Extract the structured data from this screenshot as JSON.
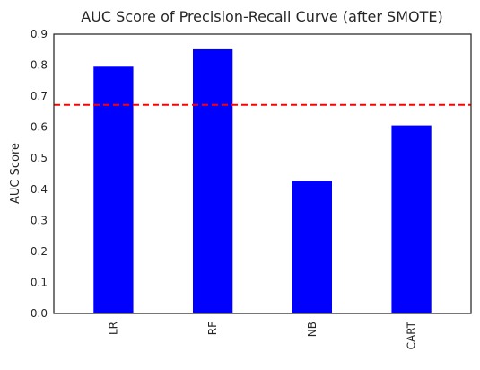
{
  "chart_data": {
    "type": "bar",
    "title": "AUC Score of Precision-Recall Curve (after SMOTE)",
    "xlabel": "",
    "ylabel": "AUC Score",
    "categories": [
      "LR",
      "RF",
      "NB",
      "CART"
    ],
    "values": [
      0.795,
      0.851,
      0.427,
      0.606
    ],
    "ylim": [
      0,
      0.9
    ],
    "yticks": [
      "0.0",
      "0.1",
      "0.2",
      "0.3",
      "0.4",
      "0.5",
      "0.6",
      "0.7",
      "0.8",
      "0.9"
    ],
    "reference_line": {
      "value": 0.672,
      "color": "#ff0000",
      "style": "dashed"
    },
    "bar_color": "#0000ff",
    "grid": false,
    "legend": "none"
  }
}
